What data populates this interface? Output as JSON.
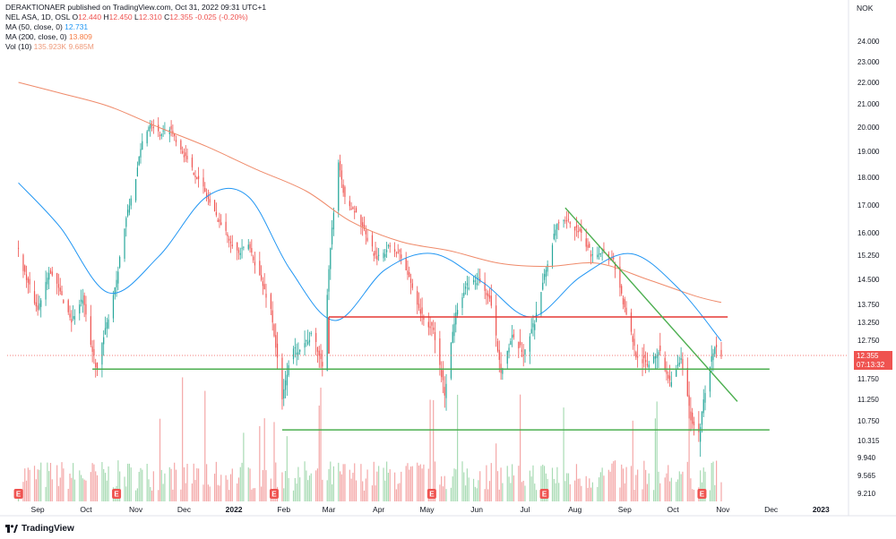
{
  "header": {
    "published": "DERAKTIONAER published on TradingView.com, Oct 31, 2022 09:31 UTC+1",
    "symbol": "NEL ASA, 1D, OSL",
    "ohlc": {
      "o_label": "O",
      "o": "12.440",
      "h_label": "H",
      "h": "12.450",
      "l_label": "L",
      "l": "12.310",
      "c_label": "C",
      "c": "12.355",
      "change": "-0.025 (-0.20%)"
    },
    "ma50": {
      "label": "MA (50, close, 0)",
      "value": "12.731"
    },
    "ma200": {
      "label": "MA (200, close, 0)",
      "value": "13.809"
    },
    "vol": {
      "label": "Vol (10)",
      "v1": "135.923K",
      "v2": "9.685M"
    }
  },
  "currency": "NOK",
  "last_price": {
    "price": "12.355",
    "countdown": "07:13:32"
  },
  "footer": {
    "logo_text": "TradingView",
    "logo_icon": "tradingview-logo-icon"
  },
  "colors": {
    "up": "#26a69a",
    "down": "#ef5350",
    "ma50": "#2196f3",
    "ma200": "#ef8a6a",
    "support": "#4caf50",
    "resistance": "#e53935",
    "volume_up": "#8bcf9b",
    "volume_down": "#f08a8a"
  },
  "chart_data": {
    "type": "candlestick",
    "y_axis_ticks": [
      "24.000",
      "23.000",
      "22.000",
      "21.000",
      "20.000",
      "19.000",
      "18.000",
      "17.000",
      "16.000",
      "15.250",
      "14.500",
      "13.750",
      "13.250",
      "12.750",
      "11.750",
      "11.250",
      "10.750",
      "10.315",
      "9.940",
      "9.565",
      "9.210"
    ],
    "ylim": [
      9.0,
      24.6
    ],
    "x_axis_ticks": [
      "Sep",
      "Oct",
      "Nov",
      "Dec",
      "2022",
      "Feb",
      "Mar",
      "Apr",
      "May",
      "Jun",
      "Jul",
      "Aug",
      "Sep",
      "Oct",
      "Nov",
      "Dec",
      "2023"
    ],
    "close_path": [
      [
        "2021-08-20",
        15.4
      ],
      [
        "2021-08-25",
        14.5
      ],
      [
        "2021-09-01",
        13.6
      ],
      [
        "2021-09-08",
        14.8
      ],
      [
        "2021-09-15",
        14.1
      ],
      [
        "2021-09-22",
        13.3
      ],
      [
        "2021-09-29",
        13.9
      ],
      [
        "2021-10-04",
        12.6
      ],
      [
        "2021-10-08",
        12.0
      ],
      [
        "2021-10-14",
        13.2
      ],
      [
        "2021-10-20",
        14.5
      ],
      [
        "2021-10-26",
        16.5
      ],
      [
        "2021-11-01",
        18.0
      ],
      [
        "2021-11-05",
        19.4
      ],
      [
        "2021-11-10",
        20.2
      ],
      [
        "2021-11-16",
        19.7
      ],
      [
        "2021-11-22",
        20.0
      ],
      [
        "2021-11-29",
        19.1
      ],
      [
        "2021-12-06",
        18.3
      ],
      [
        "2021-12-13",
        17.6
      ],
      [
        "2021-12-20",
        16.7
      ],
      [
        "2021-12-27",
        16.0
      ],
      [
        "2022-01-04",
        15.3
      ],
      [
        "2022-01-10",
        15.6
      ],
      [
        "2022-01-17",
        14.6
      ],
      [
        "2022-01-24",
        13.6
      ],
      [
        "2022-01-31",
        11.2
      ],
      [
        "2022-02-05",
        12.4
      ],
      [
        "2022-02-12",
        12.6
      ],
      [
        "2022-02-19",
        12.9
      ],
      [
        "2022-02-25",
        12.1
      ],
      [
        "2022-03-02",
        15.5
      ],
      [
        "2022-03-07",
        18.5
      ],
      [
        "2022-03-11",
        17.2
      ],
      [
        "2022-03-17",
        16.8
      ],
      [
        "2022-03-24",
        15.9
      ],
      [
        "2022-03-31",
        15.1
      ],
      [
        "2022-04-07",
        15.5
      ],
      [
        "2022-04-14",
        15.3
      ],
      [
        "2022-04-21",
        14.4
      ],
      [
        "2022-04-28",
        13.4
      ],
      [
        "2022-05-05",
        13.0
      ],
      [
        "2022-05-12",
        11.4
      ],
      [
        "2022-05-19",
        13.6
      ],
      [
        "2022-05-26",
        14.3
      ],
      [
        "2022-06-02",
        14.5
      ],
      [
        "2022-06-09",
        13.9
      ],
      [
        "2022-06-16",
        12.0
      ],
      [
        "2022-06-23",
        12.8
      ],
      [
        "2022-06-30",
        12.4
      ],
      [
        "2022-07-07",
        13.3
      ],
      [
        "2022-07-14",
        14.8
      ],
      [
        "2022-07-21",
        16.3
      ],
      [
        "2022-07-28",
        16.4
      ],
      [
        "2022-08-04",
        16.0
      ],
      [
        "2022-08-11",
        15.3
      ],
      [
        "2022-08-18",
        15.4
      ],
      [
        "2022-08-25",
        15.1
      ],
      [
        "2022-09-01",
        13.6
      ],
      [
        "2022-09-08",
        12.4
      ],
      [
        "2022-09-15",
        12.1
      ],
      [
        "2022-09-22",
        12.5
      ],
      [
        "2022-09-29",
        11.7
      ],
      [
        "2022-10-06",
        12.2
      ],
      [
        "2022-10-13",
        10.6
      ],
      [
        "2022-10-17",
        10.4
      ],
      [
        "2022-10-20",
        11.3
      ],
      [
        "2022-10-24",
        12.1
      ],
      [
        "2022-10-27",
        12.6
      ],
      [
        "2022-10-31",
        12.355
      ]
    ],
    "ma50_path": [
      [
        "2021-08-20",
        17.8
      ],
      [
        "2021-09-15",
        16.2
      ],
      [
        "2021-10-15",
        14.1
      ],
      [
        "2021-11-15",
        15.2
      ],
      [
        "2021-12-15",
        17.3
      ],
      [
        "2022-01-10",
        17.3
      ],
      [
        "2022-02-05",
        14.8
      ],
      [
        "2022-03-05",
        13.3
      ],
      [
        "2022-04-05",
        14.8
      ],
      [
        "2022-05-05",
        15.3
      ],
      [
        "2022-06-05",
        14.4
      ],
      [
        "2022-07-05",
        13.4
      ],
      [
        "2022-08-05",
        14.6
      ],
      [
        "2022-09-05",
        15.3
      ],
      [
        "2022-10-05",
        14.2
      ],
      [
        "2022-10-31",
        12.731
      ]
    ],
    "ma200_path": [
      [
        "2021-08-20",
        22.0
      ],
      [
        "2021-09-15",
        21.5
      ],
      [
        "2021-10-15",
        20.9
      ],
      [
        "2021-11-15",
        20.0
      ],
      [
        "2021-12-15",
        19.2
      ],
      [
        "2022-01-15",
        18.3
      ],
      [
        "2022-02-15",
        17.5
      ],
      [
        "2022-03-15",
        16.4
      ],
      [
        "2022-04-15",
        15.7
      ],
      [
        "2022-05-15",
        15.4
      ],
      [
        "2022-06-15",
        15.0
      ],
      [
        "2022-07-15",
        14.9
      ],
      [
        "2022-08-15",
        15.0
      ],
      [
        "2022-09-15",
        14.5
      ],
      [
        "2022-10-15",
        14.0
      ],
      [
        "2022-10-31",
        13.809
      ]
    ],
    "trendlines": [
      {
        "kind": "resistance",
        "color": "#e53935",
        "from": [
          "2022-03-01",
          13.4
        ],
        "to": [
          "2022-11-04",
          13.4
        ],
        "start_tick_to": 12.4
      },
      {
        "kind": "support",
        "color": "#4caf50",
        "from": [
          "2021-10-05",
          12.0
        ],
        "to": [
          "2022-11-30",
          12.0
        ]
      },
      {
        "kind": "support",
        "color": "#4caf50",
        "from": [
          "2022-01-31",
          10.55
        ],
        "to": [
          "2022-11-30",
          10.55
        ]
      },
      {
        "kind": "downtrend",
        "color": "#4caf50",
        "from": [
          "2022-07-26",
          16.9
        ],
        "to": [
          "2022-11-10",
          11.2
        ]
      }
    ],
    "earnings_markers": [
      "2021-08-20",
      "2021-10-20",
      "2022-01-26",
      "2022-05-04",
      "2022-07-13",
      "2022-10-19"
    ],
    "earnings_label": "E"
  }
}
